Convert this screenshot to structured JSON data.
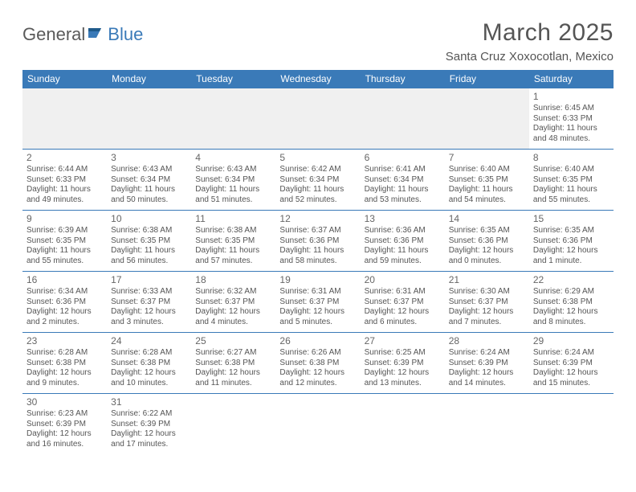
{
  "logo": {
    "part1": "General",
    "part2": "Blue"
  },
  "title": "March 2025",
  "location": "Santa Cruz Xoxocotlan, Mexico",
  "colors": {
    "header_bg": "#3a7ab8",
    "header_text": "#ffffff",
    "body_text": "#555555",
    "logo_gray": "#5a5a5a",
    "logo_blue": "#3a7ab8",
    "cell_border": "#3a7ab8",
    "empty_bg": "#f0f0f0",
    "page_bg": "#ffffff"
  },
  "typography": {
    "title_fontsize": 30,
    "location_fontsize": 15,
    "weekday_fontsize": 12,
    "daynum_fontsize": 12,
    "detail_fontsize": 10
  },
  "weekdays": [
    "Sunday",
    "Monday",
    "Tuesday",
    "Wednesday",
    "Thursday",
    "Friday",
    "Saturday"
  ],
  "weeks": [
    [
      null,
      null,
      null,
      null,
      null,
      null,
      {
        "n": "1",
        "sr": "Sunrise: 6:45 AM",
        "ss": "Sunset: 6:33 PM",
        "dl": "Daylight: 11 hours and 48 minutes."
      }
    ],
    [
      {
        "n": "2",
        "sr": "Sunrise: 6:44 AM",
        "ss": "Sunset: 6:33 PM",
        "dl": "Daylight: 11 hours and 49 minutes."
      },
      {
        "n": "3",
        "sr": "Sunrise: 6:43 AM",
        "ss": "Sunset: 6:34 PM",
        "dl": "Daylight: 11 hours and 50 minutes."
      },
      {
        "n": "4",
        "sr": "Sunrise: 6:43 AM",
        "ss": "Sunset: 6:34 PM",
        "dl": "Daylight: 11 hours and 51 minutes."
      },
      {
        "n": "5",
        "sr": "Sunrise: 6:42 AM",
        "ss": "Sunset: 6:34 PM",
        "dl": "Daylight: 11 hours and 52 minutes."
      },
      {
        "n": "6",
        "sr": "Sunrise: 6:41 AM",
        "ss": "Sunset: 6:34 PM",
        "dl": "Daylight: 11 hours and 53 minutes."
      },
      {
        "n": "7",
        "sr": "Sunrise: 6:40 AM",
        "ss": "Sunset: 6:35 PM",
        "dl": "Daylight: 11 hours and 54 minutes."
      },
      {
        "n": "8",
        "sr": "Sunrise: 6:40 AM",
        "ss": "Sunset: 6:35 PM",
        "dl": "Daylight: 11 hours and 55 minutes."
      }
    ],
    [
      {
        "n": "9",
        "sr": "Sunrise: 6:39 AM",
        "ss": "Sunset: 6:35 PM",
        "dl": "Daylight: 11 hours and 55 minutes."
      },
      {
        "n": "10",
        "sr": "Sunrise: 6:38 AM",
        "ss": "Sunset: 6:35 PM",
        "dl": "Daylight: 11 hours and 56 minutes."
      },
      {
        "n": "11",
        "sr": "Sunrise: 6:38 AM",
        "ss": "Sunset: 6:35 PM",
        "dl": "Daylight: 11 hours and 57 minutes."
      },
      {
        "n": "12",
        "sr": "Sunrise: 6:37 AM",
        "ss": "Sunset: 6:36 PM",
        "dl": "Daylight: 11 hours and 58 minutes."
      },
      {
        "n": "13",
        "sr": "Sunrise: 6:36 AM",
        "ss": "Sunset: 6:36 PM",
        "dl": "Daylight: 11 hours and 59 minutes."
      },
      {
        "n": "14",
        "sr": "Sunrise: 6:35 AM",
        "ss": "Sunset: 6:36 PM",
        "dl": "Daylight: 12 hours and 0 minutes."
      },
      {
        "n": "15",
        "sr": "Sunrise: 6:35 AM",
        "ss": "Sunset: 6:36 PM",
        "dl": "Daylight: 12 hours and 1 minute."
      }
    ],
    [
      {
        "n": "16",
        "sr": "Sunrise: 6:34 AM",
        "ss": "Sunset: 6:36 PM",
        "dl": "Daylight: 12 hours and 2 minutes."
      },
      {
        "n": "17",
        "sr": "Sunrise: 6:33 AM",
        "ss": "Sunset: 6:37 PM",
        "dl": "Daylight: 12 hours and 3 minutes."
      },
      {
        "n": "18",
        "sr": "Sunrise: 6:32 AM",
        "ss": "Sunset: 6:37 PM",
        "dl": "Daylight: 12 hours and 4 minutes."
      },
      {
        "n": "19",
        "sr": "Sunrise: 6:31 AM",
        "ss": "Sunset: 6:37 PM",
        "dl": "Daylight: 12 hours and 5 minutes."
      },
      {
        "n": "20",
        "sr": "Sunrise: 6:31 AM",
        "ss": "Sunset: 6:37 PM",
        "dl": "Daylight: 12 hours and 6 minutes."
      },
      {
        "n": "21",
        "sr": "Sunrise: 6:30 AM",
        "ss": "Sunset: 6:37 PM",
        "dl": "Daylight: 12 hours and 7 minutes."
      },
      {
        "n": "22",
        "sr": "Sunrise: 6:29 AM",
        "ss": "Sunset: 6:38 PM",
        "dl": "Daylight: 12 hours and 8 minutes."
      }
    ],
    [
      {
        "n": "23",
        "sr": "Sunrise: 6:28 AM",
        "ss": "Sunset: 6:38 PM",
        "dl": "Daylight: 12 hours and 9 minutes."
      },
      {
        "n": "24",
        "sr": "Sunrise: 6:28 AM",
        "ss": "Sunset: 6:38 PM",
        "dl": "Daylight: 12 hours and 10 minutes."
      },
      {
        "n": "25",
        "sr": "Sunrise: 6:27 AM",
        "ss": "Sunset: 6:38 PM",
        "dl": "Daylight: 12 hours and 11 minutes."
      },
      {
        "n": "26",
        "sr": "Sunrise: 6:26 AM",
        "ss": "Sunset: 6:38 PM",
        "dl": "Daylight: 12 hours and 12 minutes."
      },
      {
        "n": "27",
        "sr": "Sunrise: 6:25 AM",
        "ss": "Sunset: 6:39 PM",
        "dl": "Daylight: 12 hours and 13 minutes."
      },
      {
        "n": "28",
        "sr": "Sunrise: 6:24 AM",
        "ss": "Sunset: 6:39 PM",
        "dl": "Daylight: 12 hours and 14 minutes."
      },
      {
        "n": "29",
        "sr": "Sunrise: 6:24 AM",
        "ss": "Sunset: 6:39 PM",
        "dl": "Daylight: 12 hours and 15 minutes."
      }
    ],
    [
      {
        "n": "30",
        "sr": "Sunrise: 6:23 AM",
        "ss": "Sunset: 6:39 PM",
        "dl": "Daylight: 12 hours and 16 minutes."
      },
      {
        "n": "31",
        "sr": "Sunrise: 6:22 AM",
        "ss": "Sunset: 6:39 PM",
        "dl": "Daylight: 12 hours and 17 minutes."
      },
      null,
      null,
      null,
      null,
      null
    ]
  ]
}
